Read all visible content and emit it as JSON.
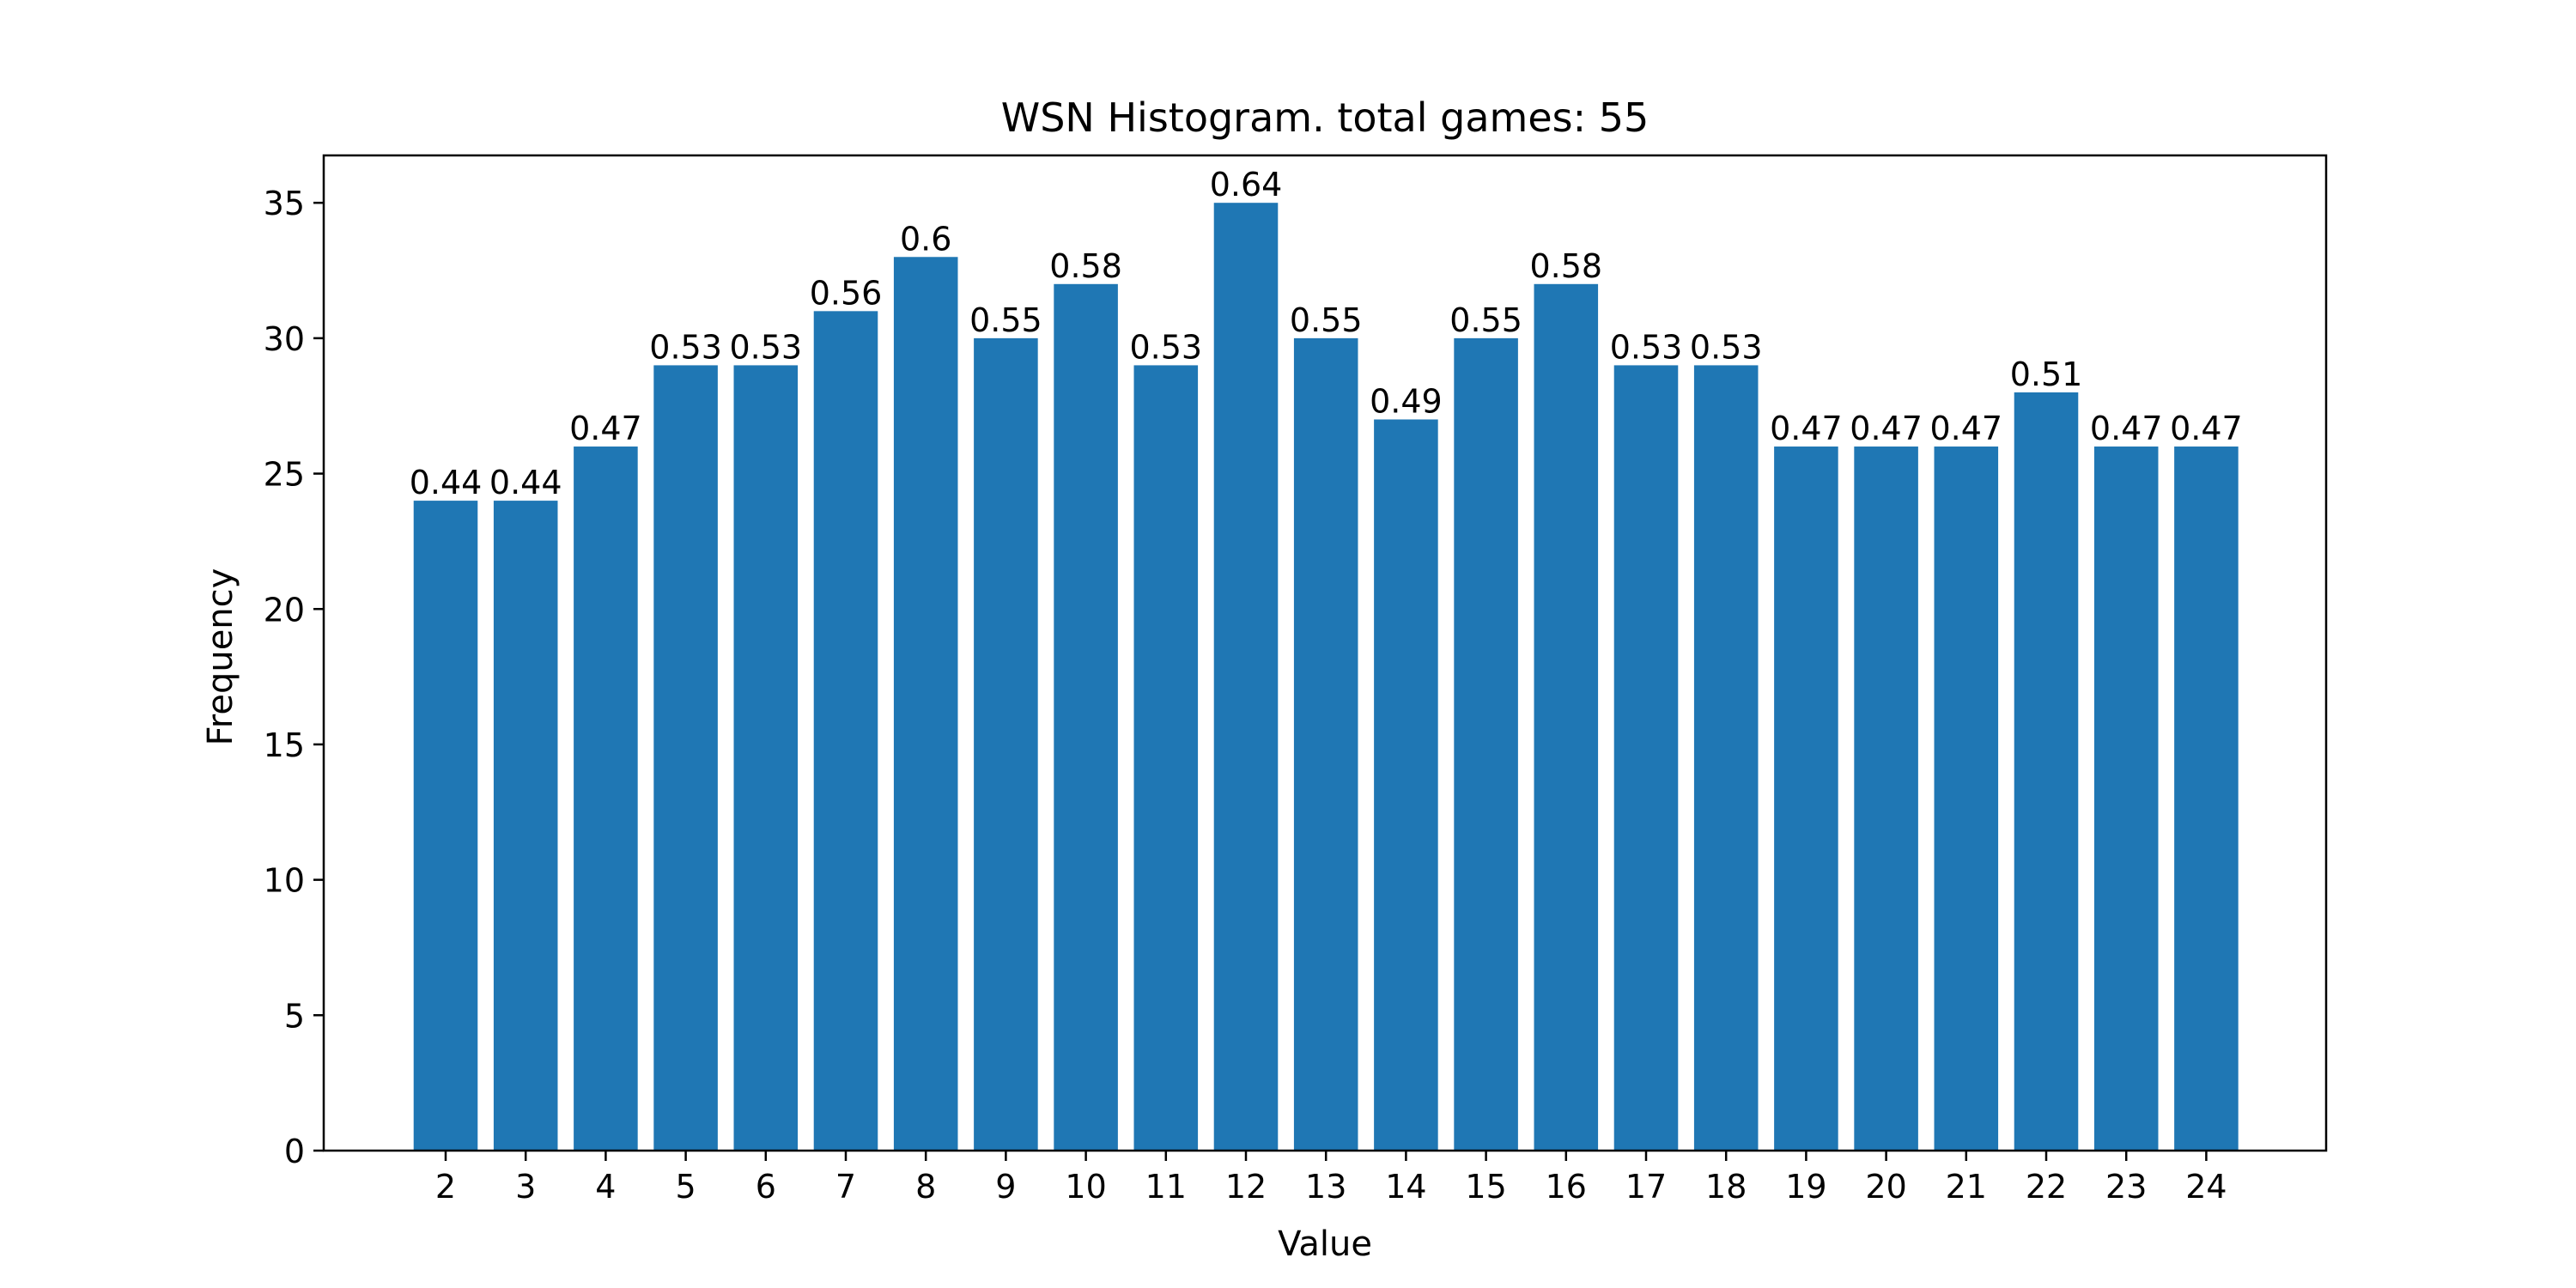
{
  "chart_data": {
    "type": "bar",
    "title": "WSN Histogram. total games: 55",
    "xlabel": "Value",
    "ylabel": "Frequency",
    "categories": [
      "2",
      "3",
      "4",
      "5",
      "6",
      "7",
      "8",
      "9",
      "10",
      "11",
      "12",
      "13",
      "14",
      "15",
      "16",
      "17",
      "18",
      "19",
      "20",
      "21",
      "22",
      "23",
      "24"
    ],
    "values": [
      24,
      24,
      26,
      29,
      29,
      31,
      33,
      30,
      32,
      29,
      35,
      30,
      27,
      30,
      32,
      29,
      29,
      26,
      26,
      26,
      28,
      26,
      26
    ],
    "bar_labels": [
      "0.44",
      "0.44",
      "0.47",
      "0.53",
      "0.53",
      "0.56",
      "0.6",
      "0.55",
      "0.58",
      "0.53",
      "0.64",
      "0.55",
      "0.49",
      "0.55",
      "0.58",
      "0.53",
      "0.53",
      "0.47",
      "0.47",
      "0.47",
      "0.51",
      "0.47",
      "0.47"
    ],
    "ylim": [
      0,
      36.75
    ],
    "yticks": [
      "0",
      "5",
      "10",
      "15",
      "20",
      "25",
      "30",
      "35"
    ],
    "grid": false,
    "bar_color": "#1f77b4"
  }
}
